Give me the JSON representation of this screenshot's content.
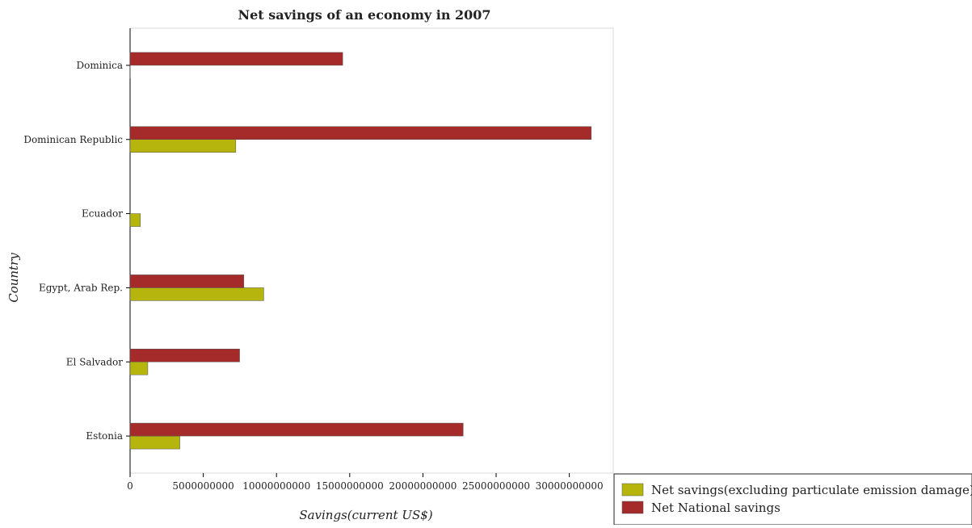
{
  "chart_data": {
    "type": "bar",
    "orientation": "horizontal",
    "title": "Net savings of an economy in 2007",
    "xlabel": "Savings(current US$)",
    "ylabel": "Country",
    "xlim": [
      0,
      33000000000
    ],
    "x_ticks": [
      {
        "value": 0,
        "label": "0"
      },
      {
        "value": 5000000000,
        "label": "5000000000"
      },
      {
        "value": 10000000000,
        "label": "10000000000"
      },
      {
        "value": 15000000000,
        "label": "15000000000"
      },
      {
        "value": 20000000000,
        "label": "20000000000"
      },
      {
        "value": 25000000000,
        "label": "25000000000"
      },
      {
        "value": 30000000000,
        "label": "30000000000"
      }
    ],
    "categories": [
      "Dominica",
      "Dominican Republic",
      "Ecuador",
      "Egypt, Arab Rep.",
      "El Salvador",
      "Estonia"
    ],
    "series": [
      {
        "name": "Net savings(excluding particulate emission damage)",
        "color": "#b5b50d",
        "values": [
          10000000,
          7220000000,
          700000000,
          9130000000,
          1210000000,
          3400000000
        ]
      },
      {
        "name": "Net National savings",
        "color": "#a52a2a",
        "values": [
          14520000000,
          31500000000,
          0,
          7770000000,
          7480000000,
          22750000000
        ]
      }
    ],
    "grid": false,
    "legend_position": "bottom-right"
  }
}
